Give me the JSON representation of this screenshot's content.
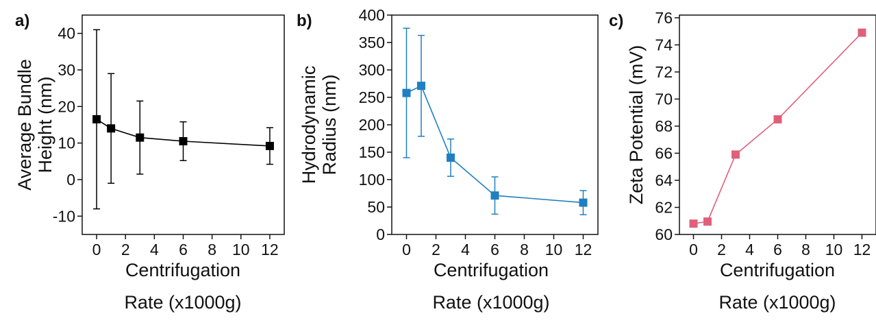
{
  "chart_data": [
    {
      "panel": "a)",
      "type": "line",
      "ylabel_lines": [
        "Average Bundle",
        "Height (nm)"
      ],
      "xlabel_lines": [
        "Centrifugation",
        "Rate (x1000g)"
      ],
      "color": "#000000",
      "x": [
        0,
        1,
        3,
        6,
        12
      ],
      "y": [
        16.5,
        14,
        11.5,
        10.5,
        9.2
      ],
      "err": [
        24.5,
        15,
        10,
        5.3,
        5
      ],
      "xlim": [
        -1,
        13
      ],
      "ylim": [
        -15,
        45
      ],
      "xticks": [
        0,
        2,
        4,
        6,
        8,
        10,
        12
      ],
      "yticks": [
        -10,
        0,
        10,
        20,
        30,
        40
      ],
      "yticklabels": [
        "-10",
        "0",
        "10",
        "20",
        "30",
        "40"
      ]
    },
    {
      "panel": "b)",
      "type": "line",
      "ylabel_lines": [
        "Hydrodynamic",
        "Radius (nm)"
      ],
      "xlabel_lines": [
        "Centrifugation",
        "Rate (x1000g)"
      ],
      "color": "#1f7fc0",
      "x": [
        0,
        1,
        3,
        6,
        12
      ],
      "y": [
        258,
        271,
        140,
        71,
        58
      ],
      "err": [
        118,
        92,
        34,
        34,
        22
      ],
      "xlim": [
        -1,
        13
      ],
      "ylim": [
        0,
        400
      ],
      "xticks": [
        0,
        2,
        4,
        6,
        8,
        10,
        12
      ],
      "yticks": [
        0,
        50,
        100,
        150,
        200,
        250,
        300,
        350,
        400
      ],
      "yticklabels": [
        "0",
        "50",
        "100",
        "150",
        "200",
        "250",
        "300",
        "350",
        "400"
      ]
    },
    {
      "panel": "c)",
      "type": "line",
      "ylabel_lines": [
        "Zeta Potential (mV)"
      ],
      "xlabel_lines": [
        "Centrifugation",
        "Rate (x1000g)"
      ],
      "color": "#e0607a",
      "x": [
        0,
        1,
        3,
        6,
        12
      ],
      "y": [
        60.8,
        60.95,
        65.9,
        68.5,
        74.9
      ],
      "err": [
        0,
        0,
        0,
        0,
        0
      ],
      "xlim": [
        -1,
        13
      ],
      "ylim": [
        60,
        76.2
      ],
      "xticks": [
        0,
        2,
        4,
        6,
        8,
        10,
        12
      ],
      "yticks": [
        60,
        62,
        64,
        66,
        68,
        70,
        72,
        74,
        76
      ],
      "yticklabels": [
        "60",
        "62",
        "64",
        "66",
        "68",
        "70",
        "72",
        "74",
        "76"
      ]
    }
  ]
}
